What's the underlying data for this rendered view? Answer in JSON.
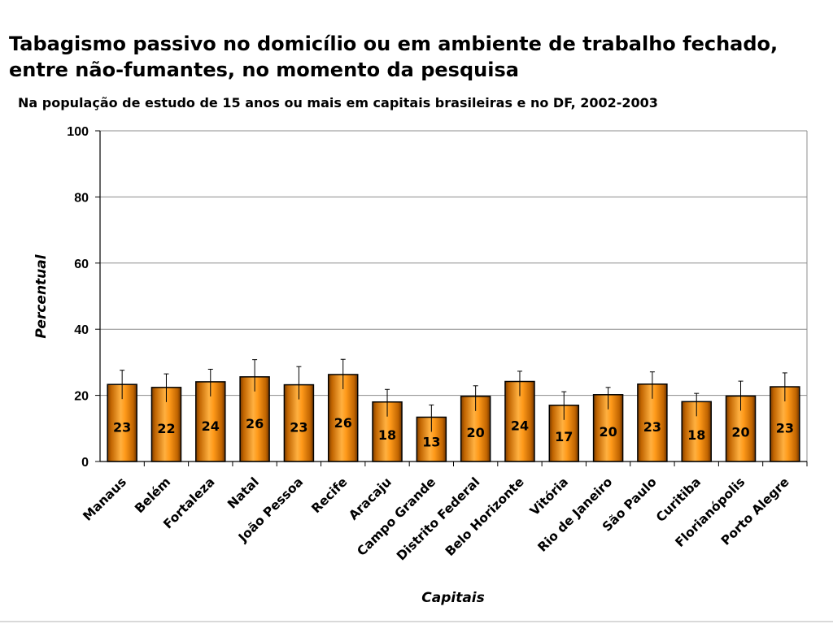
{
  "page": {
    "title": "Tabagismo passivo no domicílio ou em ambiente de trabalho fechado, entre não-fumantes, no momento da pesquisa",
    "subtitle": "Na população de estudo de 15 anos ou mais em capitais brasileiras e no DF, 2002-2003"
  },
  "chart_data": {
    "type": "bar",
    "title": "Tabagismo passivo no domicílio ou em ambiente de trabalho fechado, entre não-fumantes, no momento da pesquisa",
    "subtitle": "Na população de estudo de 15 anos ou mais em capitais brasileiras e no DF, 2002-2003",
    "xlabel": "Capitais",
    "ylabel": "Percentual",
    "ylim": [
      0,
      100
    ],
    "yticks": [
      0,
      20,
      40,
      60,
      80,
      100
    ],
    "grid": true,
    "legend": "none",
    "bar_color": "#F08C00",
    "categories": [
      "Manaus",
      "Belém",
      "Fortaleza",
      "Natal",
      "João Pessoa",
      "Recife",
      "Aracaju",
      "Campo Grande",
      "Distrito Federal",
      "Belo Horizonte",
      "Vitória",
      "Rio de Janeiro",
      "São Paulo",
      "Curitiba",
      "Florianópolis",
      "Porto Alegre"
    ],
    "values": [
      23.3,
      22.4,
      24.1,
      25.6,
      23.2,
      26.3,
      18.0,
      13.4,
      19.7,
      24.2,
      17.0,
      20.2,
      23.4,
      18.1,
      19.8,
      22.6
    ],
    "labels": [
      "23",
      "22",
      "24",
      "26",
      "23",
      "26",
      "18",
      "13",
      "20",
      "24",
      "17",
      "20",
      "23",
      "18",
      "20",
      "23"
    ],
    "error_upper": [
      27.6,
      26.5,
      27.9,
      30.8,
      28.7,
      30.9,
      21.8,
      17.1,
      22.9,
      27.3,
      21.1,
      22.4,
      27.1,
      20.6,
      24.3,
      26.8
    ]
  }
}
